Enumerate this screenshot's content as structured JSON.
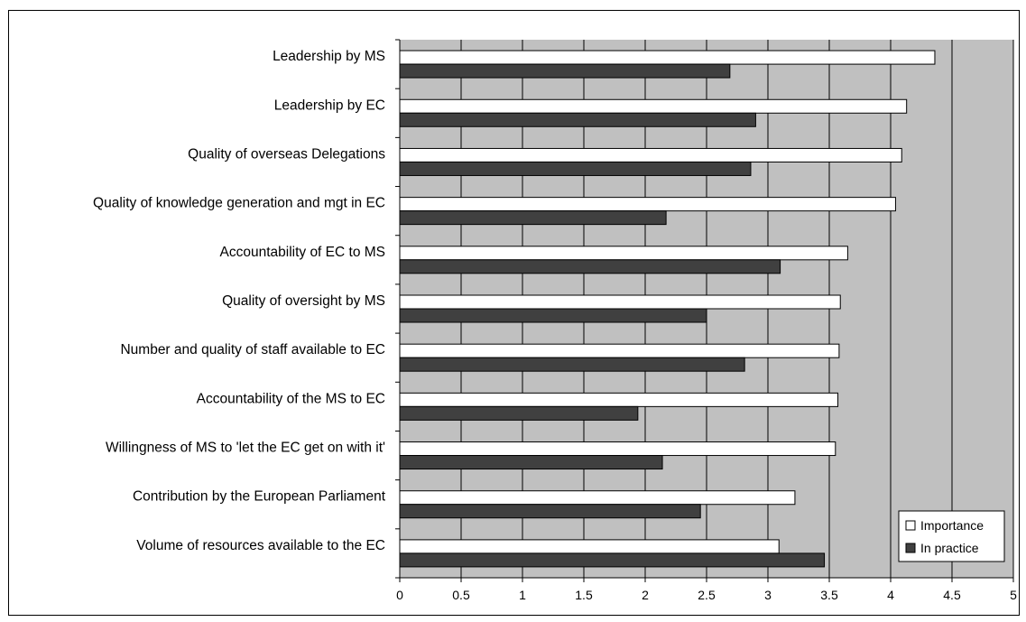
{
  "chart_data": {
    "type": "bar",
    "orientation": "horizontal",
    "categories": [
      "Leadership by MS",
      "Leadership by EC",
      "Quality of overseas Delegations",
      "Quality of knowledge generation and mgt in EC",
      "Accountability of EC to MS",
      "Quality of oversight by MS",
      "Number and quality of staff available to EC",
      "Accountability of the MS to EC",
      "Willingness of MS to 'let the EC get on with it'",
      "Contribution by the European Parliament",
      "Volume of resources available to the EC"
    ],
    "series": [
      {
        "name": "Importance",
        "color": "#ffffff",
        "values": [
          4.36,
          4.13,
          4.09,
          4.04,
          3.65,
          3.59,
          3.58,
          3.57,
          3.55,
          3.22,
          3.09
        ]
      },
      {
        "name": "In practice",
        "color": "#404040",
        "values": [
          2.69,
          2.9,
          2.86,
          2.17,
          3.1,
          2.5,
          2.81,
          1.94,
          2.14,
          2.45,
          3.46
        ]
      }
    ],
    "xlim": [
      0,
      5
    ],
    "xticks": [
      "0",
      "0.5",
      "1",
      "1.5",
      "2",
      "2.5",
      "3",
      "3.5",
      "4",
      "4.5",
      "5"
    ],
    "grid": true,
    "plot_background": "#c0c0c0",
    "legend_position": "bottom-right"
  }
}
